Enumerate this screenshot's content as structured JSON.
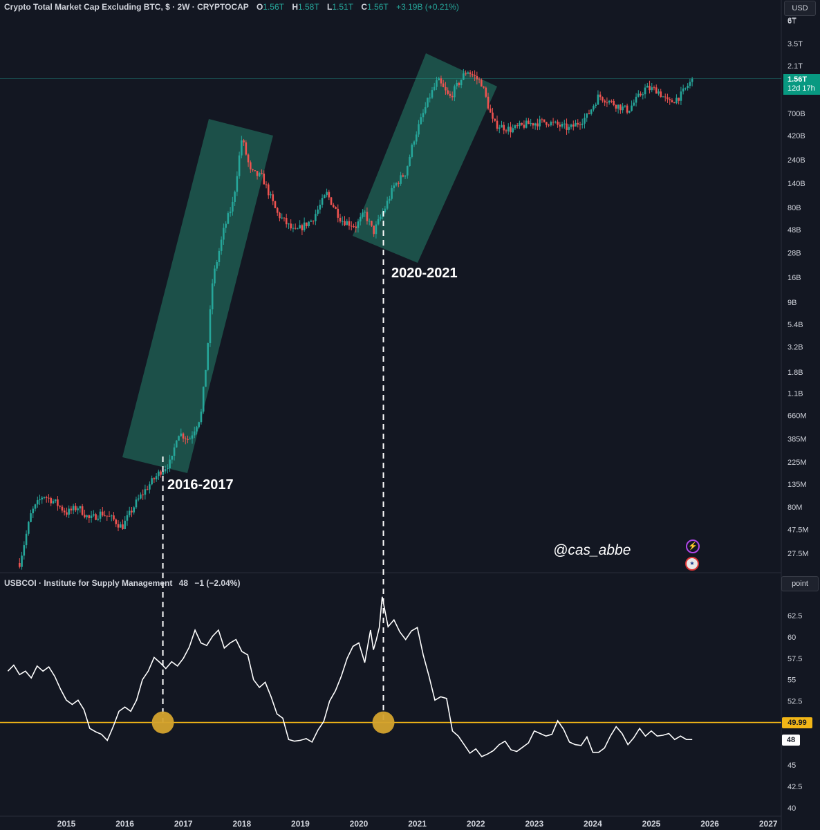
{
  "header": {
    "title": "Crypto Total Market Cap Excluding BTC, $ · 2W · CRYPTOCAP",
    "o_label": "O",
    "o_value": "1.56T",
    "h_label": "H",
    "h_value": "1.58T",
    "l_label": "L",
    "l_value": "1.51T",
    "c_label": "C",
    "c_value": "1.56T",
    "change": "+3.19B (+0.21%)"
  },
  "currency_tag": "USD",
  "price_tag": {
    "value": "1.56T",
    "countdown": "12d 17h"
  },
  "annotations": {
    "cycle1": "2016-2017",
    "cycle2": "2020-2021"
  },
  "watermark": "@cas_abbe",
  "icons": {
    "bolt": "lightning-bolt-icon",
    "flag": "us-flag-icon"
  },
  "ism_header": {
    "title": "USBCOI · Institute for Supply Management",
    "value": "48",
    "change": "−1 (−2.04%)"
  },
  "ism_unit_tag": "point",
  "ism_threshold_tag": "49.99",
  "ism_last_tag": "48",
  "colors": {
    "background": "#131722",
    "up": "#26a69a",
    "down": "#ef5350",
    "channel": "#1f5a50",
    "threshold": "#f2b617",
    "ism_line": "#ffffff",
    "marker": "#d4a32e"
  },
  "chart_data": [
    {
      "type": "candlestick",
      "title": "Crypto Total Market Cap Excluding BTC",
      "scale": "log",
      "y_tick_labels": [
        "6T",
        "3.5T",
        "2.1T",
        "700B",
        "420B",
        "240B",
        "140B",
        "80B",
        "48B",
        "28B",
        "16B",
        "9B",
        "5.4B",
        "3.2B",
        "1.8B",
        "1.1B",
        "660M",
        "385M",
        "225M",
        "135M",
        "80M",
        "47.5M",
        "27.5M"
      ],
      "y_ticks": [
        6000000000000.0,
        3500000000000.0,
        2100000000000.0,
        700000000000.0,
        420000000000.0,
        240000000000.0,
        140000000000.0,
        80000000000.0,
        48000000000.0,
        28000000000.0,
        16000000000.0,
        9000000000.0,
        5400000000.0,
        3200000000.0,
        1800000000.0,
        1100000000.0,
        660000000.0,
        385000000.0,
        225000000.0,
        135000000.0,
        80000000.0,
        47500000.0,
        27500000.0
      ],
      "x_tick_labels": [
        "2015",
        "2016",
        "2017",
        "2018",
        "2019",
        "2020",
        "2021",
        "2022",
        "2023",
        "2024",
        "2025",
        "2026",
        "2027"
      ],
      "last_value": "1.56T",
      "close_path": [
        [
          2014.2,
          22000000.0
        ],
        [
          2014.4,
          70000000.0
        ],
        [
          2014.6,
          105000000.0
        ],
        [
          2014.8,
          90000000.0
        ],
        [
          2015.0,
          70000000.0
        ],
        [
          2015.2,
          80000000.0
        ],
        [
          2015.4,
          60000000.0
        ],
        [
          2015.6,
          70000000.0
        ],
        [
          2015.8,
          60000000.0
        ],
        [
          2015.95,
          50000000.0
        ],
        [
          2016.2,
          90000000.0
        ],
        [
          2016.4,
          130000000.0
        ],
        [
          2016.6,
          180000000.0
        ],
        [
          2016.8,
          230000000.0
        ],
        [
          2016.9,
          450000000.0
        ],
        [
          2017.1,
          380000000.0
        ],
        [
          2017.3,
          660000000.0
        ],
        [
          2017.4,
          2500000000.0
        ],
        [
          2017.5,
          15000000000.0
        ],
        [
          2017.7,
          50000000000.0
        ],
        [
          2017.85,
          90000000000.0
        ],
        [
          2018.0,
          400000000000.0
        ],
        [
          2018.15,
          180000000000.0
        ],
        [
          2018.35,
          160000000000.0
        ],
        [
          2018.6,
          70000000000.0
        ],
        [
          2018.9,
          45000000000.0
        ],
        [
          2019.2,
          60000000000.0
        ],
        [
          2019.45,
          110000000000.0
        ],
        [
          2019.7,
          60000000000.0
        ],
        [
          2019.95,
          52000000000.0
        ],
        [
          2020.1,
          70000000000.0
        ],
        [
          2020.25,
          45000000000.0
        ],
        [
          2020.45,
          80000000000.0
        ],
        [
          2020.6,
          130000000000.0
        ],
        [
          2020.8,
          180000000000.0
        ],
        [
          2020.95,
          400000000000.0
        ],
        [
          2021.2,
          1000000000000.0
        ],
        [
          2021.35,
          1500000000000.0
        ],
        [
          2021.55,
          1000000000000.0
        ],
        [
          2021.85,
          1900000000000.0
        ],
        [
          2022.1,
          1400000000000.0
        ],
        [
          2022.3,
          550000000000.0
        ],
        [
          2022.6,
          480000000000.0
        ],
        [
          2022.9,
          550000000000.0
        ],
        [
          2023.2,
          580000000000.0
        ],
        [
          2023.6,
          490000000000.0
        ],
        [
          2023.9,
          650000000000.0
        ],
        [
          2024.1,
          1050000000000.0
        ],
        [
          2024.4,
          850000000000.0
        ],
        [
          2024.6,
          750000000000.0
        ],
        [
          2024.9,
          1250000000000.0
        ],
        [
          2025.1,
          1200000000000.0
        ],
        [
          2025.3,
          880000000000.0
        ],
        [
          2025.5,
          1050000000000.0
        ],
        [
          2025.65,
          1400000000000.0
        ],
        [
          2025.73,
          1560000000000.0
        ]
      ],
      "channels": [
        {
          "label": "2016-2017",
          "from": 2016.7,
          "to": 2018.2
        },
        {
          "label": "2020-2021",
          "from": 2020.0,
          "to": 2022.3
        }
      ]
    },
    {
      "type": "line",
      "title": "USBCOI · Institute for Supply Management",
      "y_tick_labels": [
        "62.5",
        "60",
        "57.5",
        "55",
        "52.5",
        "45",
        "42.5",
        "40"
      ],
      "y_ticks": [
        62.5,
        60,
        57.5,
        55,
        52.5,
        45,
        42.5,
        40
      ],
      "ylim": [
        40,
        65
      ],
      "threshold": 49.99,
      "last_value": 48,
      "x": [
        2014.0,
        2014.1,
        2014.2,
        2014.3,
        2014.4,
        2014.5,
        2014.6,
        2014.7,
        2014.8,
        2014.9,
        2015.0,
        2015.1,
        2015.2,
        2015.3,
        2015.4,
        2015.5,
        2015.6,
        2015.7,
        2015.8,
        2015.9,
        2016.0,
        2016.1,
        2016.2,
        2016.3,
        2016.4,
        2016.5,
        2016.6,
        2016.7,
        2016.8,
        2016.9,
        2017.0,
        2017.1,
        2017.2,
        2017.3,
        2017.4,
        2017.5,
        2017.6,
        2017.7,
        2017.8,
        2017.9,
        2018.0,
        2018.1,
        2018.2,
        2018.3,
        2018.4,
        2018.5,
        2018.6,
        2018.7,
        2018.8,
        2018.9,
        2019.0,
        2019.1,
        2019.2,
        2019.3,
        2019.4,
        2019.5,
        2019.6,
        2019.7,
        2019.8,
        2019.9,
        2020.0,
        2020.1,
        2020.2,
        2020.25,
        2020.3,
        2020.35,
        2020.4,
        2020.5,
        2020.6,
        2020.7,
        2020.8,
        2020.9,
        2021.0,
        2021.1,
        2021.2,
        2021.3,
        2021.4,
        2021.5,
        2021.6,
        2021.7,
        2021.8,
        2021.9,
        2022.0,
        2022.1,
        2022.2,
        2022.3,
        2022.4,
        2022.5,
        2022.6,
        2022.7,
        2022.8,
        2022.9,
        2023.0,
        2023.1,
        2023.2,
        2023.3,
        2023.4,
        2023.5,
        2023.6,
        2023.7,
        2023.8,
        2023.9,
        2024.0,
        2024.1,
        2024.2,
        2024.3,
        2024.4,
        2024.5,
        2024.6,
        2024.7,
        2024.8,
        2024.9,
        2025.0,
        2025.1,
        2025.2,
        2025.3,
        2025.4,
        2025.5,
        2025.6,
        2025.7
      ],
      "values": [
        56.0,
        56.7,
        55.6,
        56.0,
        55.2,
        56.6,
        56.0,
        56.5,
        55.4,
        53.9,
        52.6,
        52.1,
        52.6,
        51.5,
        49.3,
        48.9,
        48.6,
        47.9,
        49.5,
        51.3,
        51.8,
        51.3,
        52.6,
        55.0,
        56.0,
        57.6,
        57.0,
        56.3,
        57.1,
        56.6,
        57.5,
        58.8,
        60.8,
        59.3,
        59.0,
        60.1,
        60.8,
        58.7,
        59.3,
        59.7,
        58.3,
        57.9,
        55.0,
        54.1,
        54.7,
        53.0,
        51.0,
        50.5,
        48.0,
        47.8,
        47.9,
        48.1,
        47.7,
        49.1,
        50.1,
        52.5,
        53.7,
        55.4,
        57.5,
        58.9,
        59.3,
        57.0,
        60.8,
        58.5,
        59.7,
        61.1,
        64.7,
        61.2,
        62.0,
        60.6,
        59.7,
        60.7,
        61.1,
        57.9,
        55.4,
        52.6,
        53.0,
        52.8,
        49.0,
        48.4,
        47.4,
        46.4,
        46.9,
        46.0,
        46.3,
        46.7,
        47.4,
        47.8,
        46.8,
        46.6,
        47.1,
        47.6,
        49.0,
        48.7,
        48.4,
        48.6,
        50.2,
        49.2,
        47.7,
        47.4,
        47.3,
        48.3,
        46.5,
        46.5,
        47.0,
        48.4,
        49.5,
        48.7,
        47.4,
        48.2,
        49.3,
        48.4,
        49.0,
        48.4,
        48.5,
        48.7,
        48.0,
        48.4,
        48.0,
        48.0
      ]
    }
  ]
}
